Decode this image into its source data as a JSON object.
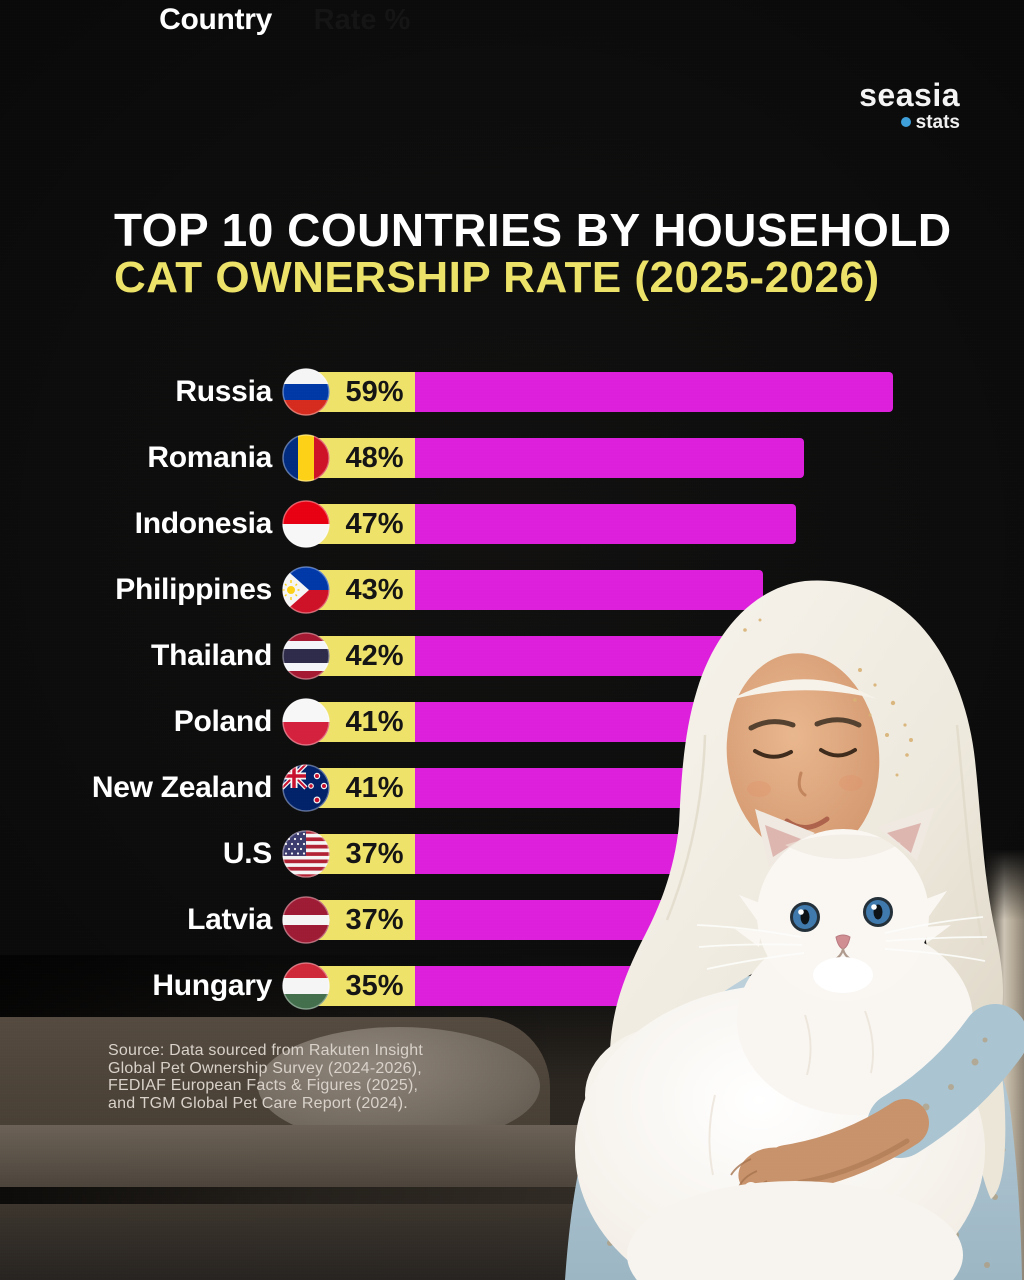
{
  "logo": {
    "brand": "seasia",
    "sub": "stats"
  },
  "title": {
    "line1": "TOP 10 COUNTRIES BY HOUSEHOLD",
    "line2": "CAT OWNERSHIP RATE (2025-2026)"
  },
  "table_headers": {
    "country": "Country",
    "rate": "Rate %"
  },
  "source": {
    "lines": [
      "Source: Data sourced from Rakuten Insight",
      "Global Pet Ownership Survey (2024-2026),",
      "FEDIAF European Facts & Figures (2025),",
      "and TGM Global Pet Care Report (2024)."
    ]
  },
  "colors": {
    "background": "#0c0c0c",
    "bar": "#dd1fdc",
    "rate_box": "#efe269",
    "title_line1": "#ffffff",
    "title_line2": "#ede268",
    "logo_dot": "#3e9fd9",
    "source_text": "#d8d2ca"
  },
  "chart_data": {
    "type": "bar",
    "orientation": "horizontal",
    "title": "Top 10 Countries by Household Cat Ownership Rate (2025-2026)",
    "unit": "%",
    "value_range": [
      0,
      59
    ],
    "grid": false,
    "legend": false,
    "categories": [
      "Russia",
      "Romania",
      "Indonesia",
      "Philippines",
      "Thailand",
      "Poland",
      "New Zealand",
      "U.S",
      "Latvia",
      "Hungary"
    ],
    "values": [
      59,
      48,
      47,
      43,
      42,
      41,
      41,
      37,
      37,
      35
    ],
    "rows": [
      {
        "country": "Russia",
        "rate": 59,
        "rate_label": "59%",
        "flag": "russia"
      },
      {
        "country": "Romania",
        "rate": 48,
        "rate_label": "48%",
        "flag": "romania"
      },
      {
        "country": "Indonesia",
        "rate": 47,
        "rate_label": "47%",
        "flag": "indonesia"
      },
      {
        "country": "Philippines",
        "rate": 43,
        "rate_label": "43%",
        "flag": "philippines"
      },
      {
        "country": "Thailand",
        "rate": 42,
        "rate_label": "42%",
        "flag": "thailand"
      },
      {
        "country": "Poland",
        "rate": 41,
        "rate_label": "41%",
        "flag": "poland"
      },
      {
        "country": "New Zealand",
        "rate": 41,
        "rate_label": "41%",
        "flag": "new-zealand"
      },
      {
        "country": "U.S",
        "rate": 37,
        "rate_label": "37%",
        "flag": "us"
      },
      {
        "country": "Latvia",
        "rate": 37,
        "rate_label": "37%",
        "flag": "latvia"
      },
      {
        "country": "Hungary",
        "rate": 35,
        "rate_label": "35%",
        "flag": "hungary"
      }
    ]
  }
}
